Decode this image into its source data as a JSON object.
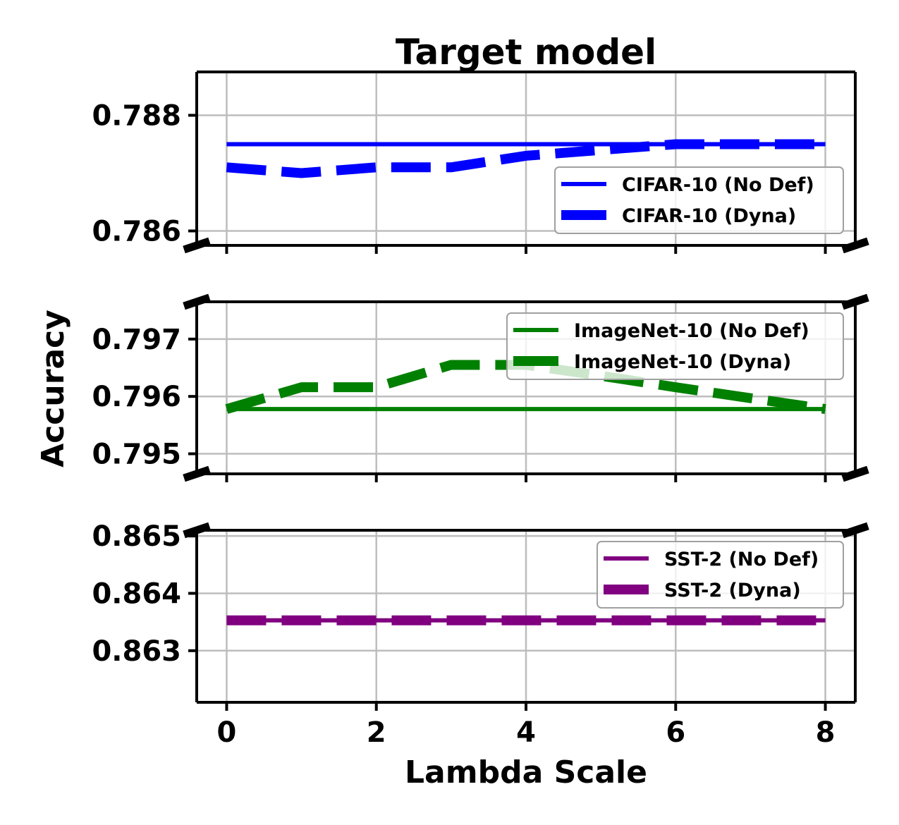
{
  "chart_data": {
    "type": "line",
    "title": "Target model",
    "xlabel": "Lambda Scale",
    "ylabel": "Accuracy",
    "x": [
      0,
      1,
      2,
      3,
      4,
      5,
      6,
      7,
      8
    ],
    "xlim": [
      -0.4,
      8.4
    ],
    "xticks": [
      "0",
      "2",
      "4",
      "6",
      "8"
    ],
    "xtick_values": [
      0,
      2,
      4,
      6,
      8
    ],
    "grid": true,
    "panels": [
      {
        "name": "cifar",
        "ylim": [
          0.78575,
          0.78875
        ],
        "yticks": [
          "0.786",
          "0.788"
        ],
        "ytick_values": [
          0.786,
          0.788
        ],
        "legend_position": "lower-right",
        "series": [
          {
            "name": "CIFAR-10 (No Def)",
            "style": "solid",
            "color": "#0000ff",
            "values": [
              0.7875,
              0.7875,
              0.7875,
              0.7875,
              0.7875,
              0.7875,
              0.7875,
              0.7875,
              0.7875
            ]
          },
          {
            "name": "CIFAR-10 (Dyna)",
            "style": "dashed",
            "color": "#0000ff",
            "values": [
              0.7871,
              0.787,
              0.7871,
              0.7871,
              0.7873,
              0.7874,
              0.7875,
              0.7875,
              0.7875
            ]
          }
        ]
      },
      {
        "name": "imagenet",
        "ylim": [
          0.79465,
          0.79765
        ],
        "yticks": [
          "0.795",
          "0.796",
          "0.797"
        ],
        "ytick_values": [
          0.795,
          0.796,
          0.797
        ],
        "legend_position": "upper-right",
        "series": [
          {
            "name": "ImageNet-10 (No Def)",
            "style": "solid",
            "color": "#008000",
            "values": [
              0.79578,
              0.79578,
              0.79578,
              0.79578,
              0.79578,
              0.79578,
              0.79578,
              0.79578,
              0.79578
            ]
          },
          {
            "name": "ImageNet-10 (Dyna)",
            "style": "dashed",
            "color": "#008000",
            "values": [
              0.79578,
              0.79616,
              0.79616,
              0.79655,
              0.79655,
              0.79636,
              0.79616,
              0.79597,
              0.79578
            ]
          }
        ]
      },
      {
        "name": "sst2",
        "ylim": [
          0.8621,
          0.8651
        ],
        "yticks": [
          "0.863",
          "0.864",
          "0.865"
        ],
        "ytick_values": [
          0.863,
          0.864,
          0.865
        ],
        "legend_position": "upper-right",
        "series": [
          {
            "name": "SST-2 (No Def)",
            "style": "solid",
            "color": "#800080",
            "values": [
              0.86353,
              0.86353,
              0.86353,
              0.86353,
              0.86353,
              0.86353,
              0.86353,
              0.86353,
              0.86353
            ]
          },
          {
            "name": "SST-2 (Dyna)",
            "style": "dashed",
            "color": "#800080",
            "values": [
              0.86353,
              0.86353,
              0.86353,
              0.86353,
              0.86353,
              0.86353,
              0.86353,
              0.86353,
              0.86353
            ]
          }
        ]
      }
    ]
  }
}
